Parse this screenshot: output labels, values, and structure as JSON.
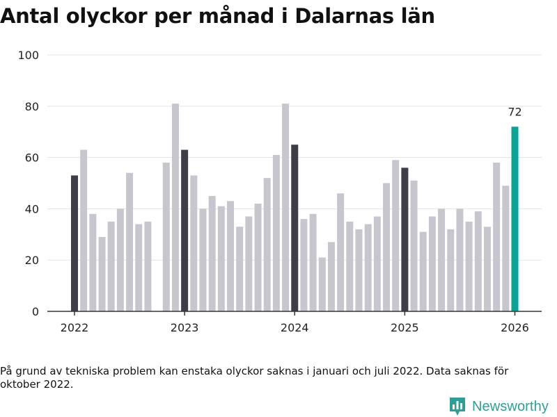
{
  "title": "Antal olyckor per månad i Dalarnas län",
  "note": "På grund av tekniska problem kan enstaka olyckor saknas i januari och juli 2022. Data saknas för oktober 2022.",
  "brand": {
    "name": "Newsworthy",
    "logo_icon": "bar-chart-icon"
  },
  "colors": {
    "january": "#3f3d48",
    "other": "#c7c6cf",
    "highlight": "#06a396",
    "grid": "#e3e3e3",
    "axis": "#333333",
    "brand": "#2f9e97"
  },
  "chart_data": {
    "type": "bar",
    "title": "Antal olyckor per månad i Dalarnas län",
    "xlabel": "",
    "ylabel": "",
    "ylim": [
      0,
      100
    ],
    "yticks": [
      0,
      20,
      40,
      60,
      80,
      100
    ],
    "xticks": [
      {
        "label": "2022",
        "index": 0
      },
      {
        "label": "2023",
        "index": 12
      },
      {
        "label": "2024",
        "index": 24
      },
      {
        "label": "2025",
        "index": 36
      },
      {
        "label": "2026",
        "index": 48
      }
    ],
    "categories": [
      "2022-01",
      "2022-02",
      "2022-03",
      "2022-04",
      "2022-05",
      "2022-06",
      "2022-07",
      "2022-08",
      "2022-09",
      "2022-10",
      "2022-11",
      "2022-12",
      "2023-01",
      "2023-02",
      "2023-03",
      "2023-04",
      "2023-05",
      "2023-06",
      "2023-07",
      "2023-08",
      "2023-09",
      "2023-10",
      "2023-11",
      "2023-12",
      "2024-01",
      "2024-02",
      "2024-03",
      "2024-04",
      "2024-05",
      "2024-06",
      "2024-07",
      "2024-08",
      "2024-09",
      "2024-10",
      "2024-11",
      "2024-12",
      "2025-01",
      "2025-02",
      "2025-03",
      "2025-04",
      "2025-05",
      "2025-06",
      "2025-07",
      "2025-08",
      "2025-09",
      "2025-10",
      "2025-11",
      "2025-12",
      "2026-01"
    ],
    "values": [
      53,
      63,
      38,
      29,
      35,
      40,
      54,
      34,
      35,
      null,
      58,
      81,
      63,
      53,
      40,
      45,
      41,
      43,
      33,
      37,
      42,
      52,
      61,
      81,
      65,
      36,
      38,
      21,
      27,
      46,
      35,
      32,
      34,
      37,
      50,
      59,
      56,
      51,
      31,
      37,
      40,
      32,
      40,
      35,
      39,
      33,
      58,
      49,
      72
    ],
    "highlight": {
      "index": 48,
      "label": "72"
    }
  }
}
